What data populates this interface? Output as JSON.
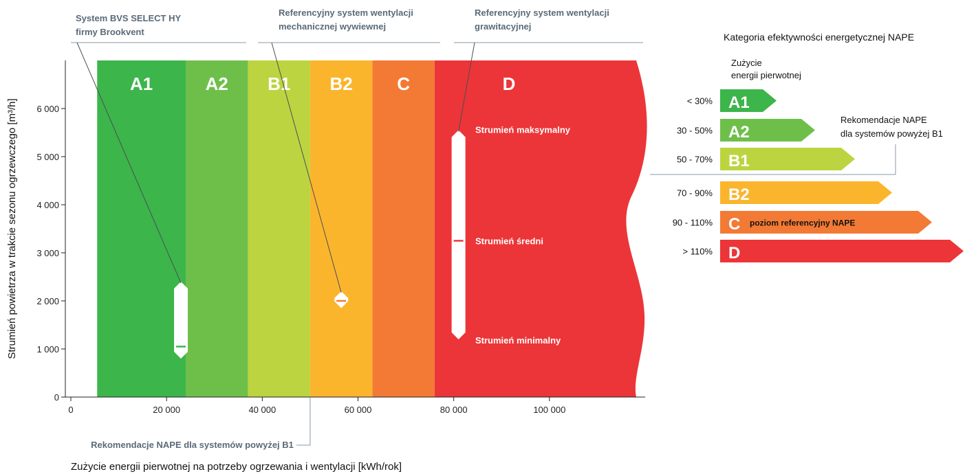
{
  "chart_data": {
    "type": "range",
    "xlabel": "Zużycie energii pierwotnej na potrzeby ogrzewania i wentylacji [kWh/rok]",
    "ylabel": "Strumień powietrza w trakcie sezonu ogrzewczego [m³/h]",
    "xlim": [
      0,
      120000
    ],
    "ylim": [
      0,
      7000
    ],
    "x_ticks": [
      {
        "value": 0,
        "label": "0"
      },
      {
        "value": 20000,
        "label": "20 000"
      },
      {
        "value": 40000,
        "label": "40 000"
      },
      {
        "value": 60000,
        "label": "60 000"
      },
      {
        "value": 80000,
        "label": "80 000"
      },
      {
        "value": 100000,
        "label": "100 000"
      }
    ],
    "y_ticks": [
      {
        "value": 0,
        "label": "0"
      },
      {
        "value": 1000,
        "label": "1 000"
      },
      {
        "value": 2000,
        "label": "2 000"
      },
      {
        "value": 3000,
        "label": "3 000"
      },
      {
        "value": 4000,
        "label": "4 000"
      },
      {
        "value": 5000,
        "label": "5 000"
      },
      {
        "value": 6000,
        "label": "6 000"
      }
    ],
    "bands": [
      {
        "label": "A1",
        "from": 5500,
        "to": 24000,
        "color": "#3cb54a"
      },
      {
        "label": "A2",
        "from": 24000,
        "to": 37000,
        "color": "#6ebf4a"
      },
      {
        "label": "B1",
        "from": 37000,
        "to": 50000,
        "color": "#bcd43f"
      },
      {
        "label": "B2",
        "from": 50000,
        "to": 63000,
        "color": "#fbb52d"
      },
      {
        "label": "C",
        "from": 63000,
        "to": 76000,
        "color": "#f37a35"
      },
      {
        "label": "D",
        "from": 76000,
        "to": 120000,
        "color": "#ec3538"
      }
    ],
    "series": [
      {
        "name": "System BVS SELECT HY firmy Brookvent",
        "x": 23000,
        "min": 800,
        "mean": 1050,
        "max": 2400
      },
      {
        "name": "Referencyjny system wentylacji mechanicznej wywiewnej",
        "x": 56500,
        "min": 1850,
        "mean": 2000,
        "max": 2200
      },
      {
        "name": "Referencyjny system wentylacji grawitacyjnej",
        "x": 81000,
        "min": 1200,
        "mean": 3250,
        "max": 5550
      }
    ],
    "flow_labels": {
      "max": "Strumień maksymalny",
      "mean": "Strumień średni",
      "min": "Strumień minimalny"
    },
    "recommendation": {
      "text": "Rekomendacje NAPE dla systemów powyżej B1",
      "x": 50000
    }
  },
  "annotations": [
    {
      "lines": [
        "System BVS SELECT HY",
        "firmy Brookvent"
      ]
    },
    {
      "lines": [
        "Referencyjny system wentylacji",
        "mechanicznej wywiewnej"
      ]
    },
    {
      "lines": [
        "Referencyjny system wentylacji",
        "grawitacyjnej"
      ]
    }
  ],
  "legend": {
    "title": "Kategoria efektywności energetycznej NAPE",
    "subtitle_lines": [
      "Zużycie",
      "energii pierwotnej"
    ],
    "recommendation_lines": [
      "Rekomendacje NAPE",
      "dla systemów powyżej B1"
    ],
    "categories": [
      {
        "letter": "A1",
        "range": "< 30%",
        "color": "#3cb54a",
        "note": ""
      },
      {
        "letter": "A2",
        "range": "30 - 50%",
        "color": "#6ebf4a",
        "note": ""
      },
      {
        "letter": "B1",
        "range": "50 - 70%",
        "color": "#bcd43f",
        "note": ""
      },
      {
        "letter": "B2",
        "range": "70 - 90%",
        "color": "#fbb52d",
        "note": ""
      },
      {
        "letter": "C",
        "range": "90 - 110%",
        "color": "#f37a35",
        "note": "poziom referencyjny NAPE"
      },
      {
        "letter": "D",
        "range": "> 110%",
        "color": "#ec3538",
        "note": ""
      }
    ]
  },
  "colors": {
    "annotation_text": "#5a6a78",
    "annotation_line": "#8a98a4",
    "marker_fill": "#ffffff",
    "mean_mark_green": "#3cb54a",
    "mean_mark_orange": "#f37a35",
    "mean_mark_red": "#ec3538"
  }
}
